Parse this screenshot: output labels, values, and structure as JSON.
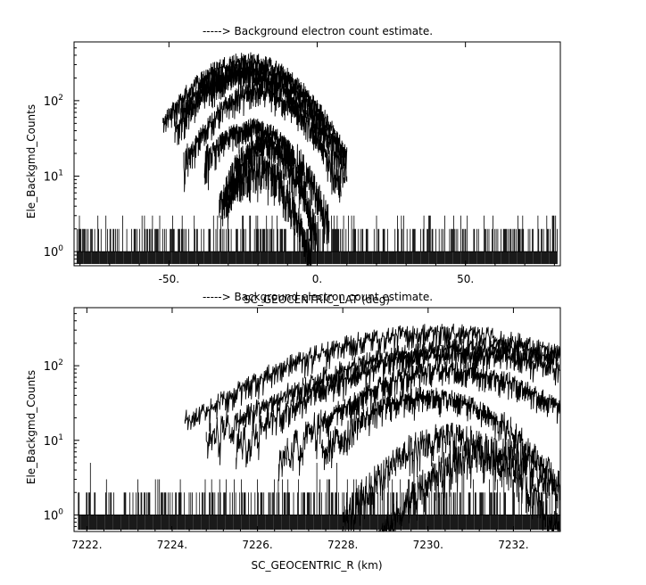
{
  "chart_data": [
    {
      "type": "line",
      "title": "-----> Background electron count estimate.",
      "xlabel": "SC_GEOCENTRIC_LAT (deg)",
      "ylabel": "Ele_Backgmd_Counts",
      "xlim": [
        -82,
        82
      ],
      "ylim": [
        0.65,
        600
      ],
      "yscale": "log",
      "x_tick_labels": [
        {
          "value": -50,
          "label": "-50."
        },
        {
          "value": 0,
          "label": "0."
        },
        {
          "value": 50,
          "label": "50."
        }
      ],
      "y_tick_labels": [
        {
          "value": 1,
          "base": "10",
          "exp": "0"
        },
        {
          "value": 10,
          "base": "10",
          "exp": "1"
        },
        {
          "value": 100,
          "base": "10",
          "exp": "2"
        }
      ],
      "noise_floor": {
        "x_range": [
          -81,
          81
        ],
        "levels": [
          1,
          2,
          3
        ]
      },
      "series": [
        {
          "peak_x": -24,
          "peak_y": 380,
          "x_range": [
            -52,
            10
          ]
        },
        {
          "peak_x": -22,
          "peak_y": 300,
          "x_range": [
            -48,
            10
          ]
        },
        {
          "peak_x": -25,
          "peak_y": 250,
          "x_range": [
            -46,
            9
          ]
        },
        {
          "peak_x": -20,
          "peak_y": 150,
          "x_range": [
            -45,
            8
          ]
        },
        {
          "peak_x": -22,
          "peak_y": 50,
          "x_range": [
            -38,
            4
          ]
        },
        {
          "peak_x": -18,
          "peak_y": 30,
          "x_range": [
            -33,
            0
          ]
        },
        {
          "peak_x": -20,
          "peak_y": 15,
          "x_range": [
            -31,
            -2
          ]
        }
      ],
      "grid": false,
      "legend": "none"
    },
    {
      "type": "line",
      "title": "-----> Background electron count estimate.",
      "xlabel": "SC_GEOCENTRIC_R (km)",
      "ylabel": "Ele_Backgmd_Counts",
      "xlim": [
        7221.7,
        7233.1
      ],
      "ylim": [
        0.6,
        600
      ],
      "yscale": "log",
      "x_tick_labels": [
        {
          "value": 7222,
          "label": "7222."
        },
        {
          "value": 7224,
          "label": "7224."
        },
        {
          "value": 7226,
          "label": "7226."
        },
        {
          "value": 7228,
          "label": "7228."
        },
        {
          "value": 7230,
          "label": "7230."
        },
        {
          "value": 7232,
          "label": "7232."
        }
      ],
      "y_tick_labels": [
        {
          "value": 1,
          "base": "10",
          "exp": "0"
        },
        {
          "value": 10,
          "base": "10",
          "exp": "1"
        },
        {
          "value": 100,
          "base": "10",
          "exp": "2"
        }
      ],
      "noise_floor": {
        "x_range": [
          7221.8,
          7233.1
        ],
        "levels": [
          1,
          2,
          3,
          5
        ]
      },
      "series": [
        {
          "peak_x": 7230.2,
          "peak_y": 320,
          "x_range": [
            7224.3,
            7233.1
          ]
        },
        {
          "peak_x": 7231.0,
          "peak_y": 200,
          "x_range": [
            7224.8,
            7233.1
          ]
        },
        {
          "peak_x": 7230.8,
          "peak_y": 170,
          "x_range": [
            7225.5,
            7233.1
          ]
        },
        {
          "peak_x": 7230.5,
          "peak_y": 100,
          "x_range": [
            7226.5,
            7233.1
          ]
        },
        {
          "peak_x": 7230.0,
          "peak_y": 45,
          "x_range": [
            7227.5,
            7233.1
          ]
        },
        {
          "peak_x": 7230.5,
          "peak_y": 12,
          "x_range": [
            7228.0,
            7233.1
          ]
        },
        {
          "peak_x": 7231.5,
          "peak_y": 8,
          "x_range": [
            7228.8,
            7233.1
          ]
        }
      ],
      "grid": false,
      "legend": "none"
    }
  ]
}
